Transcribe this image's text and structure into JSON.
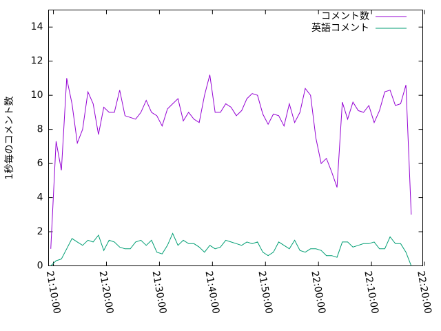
{
  "chart_data": {
    "type": "line",
    "ylabel": "1秒毎のコメント数",
    "x": [
      "21:09:30",
      "21:10:30",
      "21:11:30",
      "21:12:30",
      "21:13:30",
      "21:14:30",
      "21:15:30",
      "21:16:30",
      "21:17:30",
      "21:18:30",
      "21:19:30",
      "21:20:30",
      "21:21:30",
      "21:22:30",
      "21:23:30",
      "21:24:30",
      "21:25:30",
      "21:26:30",
      "21:27:30",
      "21:28:30",
      "21:29:30",
      "21:30:30",
      "21:31:30",
      "21:32:30",
      "21:33:30",
      "21:34:30",
      "21:35:30",
      "21:36:30",
      "21:37:30",
      "21:38:30",
      "21:39:30",
      "21:40:30",
      "21:41:30",
      "21:42:30",
      "21:43:30",
      "21:44:30",
      "21:45:30",
      "21:46:30",
      "21:47:30",
      "21:48:30",
      "21:49:30",
      "21:50:30",
      "21:51:30",
      "21:52:30",
      "21:53:30",
      "21:54:30",
      "21:55:30",
      "21:56:30",
      "21:57:30",
      "21:58:30",
      "21:59:30",
      "22:00:30",
      "22:01:30",
      "22:02:30",
      "22:03:30",
      "22:04:30",
      "22:05:30",
      "22:06:30",
      "22:07:30",
      "22:08:30",
      "22:09:30",
      "22:10:30",
      "22:11:30",
      "22:12:30",
      "22:13:30",
      "22:14:30",
      "22:15:30",
      "22:16:30",
      "22:17:30"
    ],
    "series": [
      {
        "name": "コメント数",
        "color": "#9400d3",
        "values": [
          1.0,
          7.3,
          5.6,
          11.0,
          9.5,
          7.2,
          8.0,
          10.2,
          9.5,
          7.7,
          9.3,
          9.0,
          9.0,
          10.3,
          8.8,
          8.7,
          8.6,
          9.0,
          9.7,
          9.0,
          8.8,
          8.2,
          9.2,
          9.5,
          9.8,
          8.5,
          9.0,
          8.6,
          8.4,
          10.0,
          11.2,
          9.0,
          9.0,
          9.5,
          9.3,
          8.8,
          9.1,
          9.8,
          10.1,
          10.0,
          8.9,
          8.3,
          8.9,
          8.8,
          8.2,
          9.5,
          8.4,
          9.0,
          10.4,
          10.0,
          7.5,
          6.0,
          6.3,
          5.5,
          4.6,
          9.6,
          8.6,
          9.6,
          9.1,
          9.0,
          9.4,
          8.4,
          9.1,
          10.2,
          10.3,
          9.4,
          9.5,
          10.6,
          3.0
        ]
      },
      {
        "name": "英語コメント",
        "color": "#009e73",
        "values": [
          0.0,
          0.3,
          0.4,
          1.0,
          1.6,
          1.4,
          1.2,
          1.5,
          1.4,
          1.8,
          0.9,
          1.5,
          1.4,
          1.1,
          1.0,
          1.0,
          1.4,
          1.5,
          1.2,
          1.5,
          0.8,
          0.7,
          1.2,
          1.9,
          1.2,
          1.5,
          1.3,
          1.3,
          1.1,
          0.8,
          1.2,
          1.0,
          1.1,
          1.5,
          1.4,
          1.3,
          1.2,
          1.4,
          1.3,
          1.4,
          0.8,
          0.6,
          0.8,
          1.4,
          1.2,
          1.0,
          1.5,
          0.9,
          0.8,
          1.0,
          1.0,
          0.9,
          0.6,
          0.6,
          0.5,
          1.4,
          1.4,
          1.1,
          1.2,
          1.3,
          1.3,
          1.4,
          1.0,
          1.0,
          1.7,
          1.3,
          1.3,
          0.8,
          0.0
        ]
      }
    ],
    "xlim": [
      "21:09:05",
      "22:19:40"
    ],
    "xticks": [
      "21:10:00",
      "21:20:00",
      "21:30:00",
      "21:40:00",
      "21:50:00",
      "22:00:00",
      "22:10:00",
      "22:20:00"
    ],
    "ylim": [
      0,
      15
    ],
    "yticks": [
      0,
      2,
      4,
      6,
      8,
      10,
      12,
      14
    ],
    "legend": "top-right"
  }
}
